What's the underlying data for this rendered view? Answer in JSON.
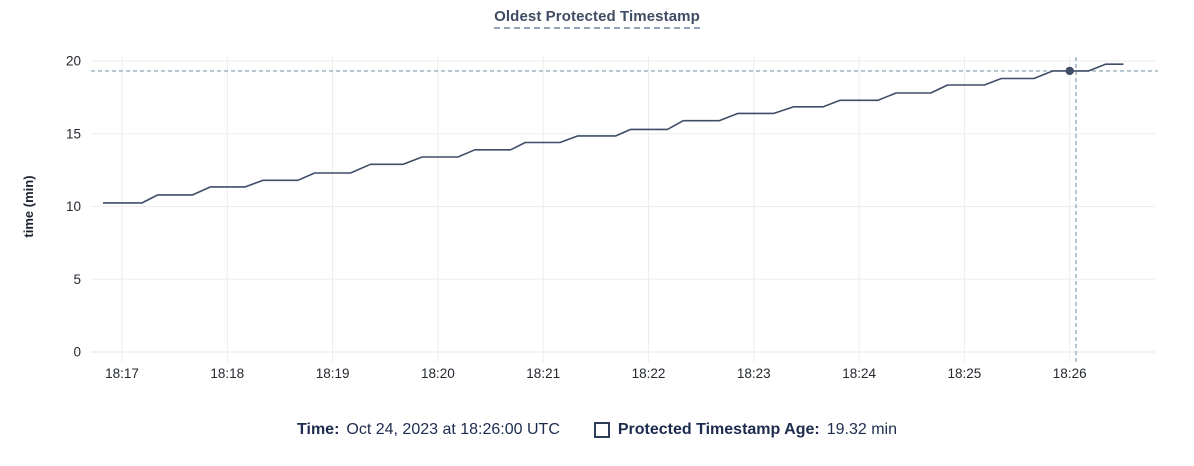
{
  "chart": {
    "title": "Oldest Protected Timestamp"
  },
  "tooltip": {
    "time_label": "Time:",
    "time_value": "Oct 24, 2023 at 18:26:00 UTC",
    "series_label": "Protected Timestamp Age:",
    "series_value": "19.32 min"
  },
  "colors": {
    "line": "#3f4e66",
    "grid": "#ededed",
    "zero_line": "#e4e4e4",
    "crosshair": "#98adbb",
    "tick_text": "#24292f",
    "axis_title_text": "#1b2330",
    "title_text": "#3f4c63",
    "title_underline": "#96a3b4",
    "legend_text": "#1d2c4e",
    "swatch_border": "#2c3c59",
    "background": "#ffffff"
  },
  "chart_data": {
    "type": "line",
    "title": "Oldest Protected Timestamp",
    "xlabel": "",
    "ylabel": "time (min)",
    "ylim": [
      0,
      20
    ],
    "y_ticks": [
      0,
      5,
      10,
      15,
      20
    ],
    "x_tick_labels": [
      "18:17",
      "18:18",
      "18:19",
      "18:20",
      "18:21",
      "18:22",
      "18:23",
      "18:24",
      "18:25",
      "18:26"
    ],
    "x_unit": "time of day UTC; series x values are minutes after 18:17",
    "grid": true,
    "legend_position": "bottom",
    "series": [
      {
        "name": "Protected Timestamp Age",
        "unit": "min",
        "points": [
          [
            -0.18,
            10.25
          ],
          [
            0.19,
            10.25
          ],
          [
            0.34,
            10.8
          ],
          [
            0.67,
            10.8
          ],
          [
            0.84,
            11.35
          ],
          [
            1.17,
            11.35
          ],
          [
            1.34,
            11.8
          ],
          [
            1.67,
            11.8
          ],
          [
            1.83,
            12.3
          ],
          [
            2.17,
            12.3
          ],
          [
            2.36,
            12.9
          ],
          [
            2.67,
            12.9
          ],
          [
            2.85,
            13.4
          ],
          [
            3.19,
            13.4
          ],
          [
            3.35,
            13.9
          ],
          [
            3.69,
            13.9
          ],
          [
            3.83,
            14.4
          ],
          [
            4.16,
            14.4
          ],
          [
            4.33,
            14.85
          ],
          [
            4.69,
            14.85
          ],
          [
            4.83,
            15.3
          ],
          [
            5.18,
            15.3
          ],
          [
            5.33,
            15.9
          ],
          [
            5.67,
            15.9
          ],
          [
            5.85,
            16.4
          ],
          [
            6.19,
            16.4
          ],
          [
            6.38,
            16.85
          ],
          [
            6.66,
            16.85
          ],
          [
            6.82,
            17.3
          ],
          [
            7.18,
            17.3
          ],
          [
            7.35,
            17.8
          ],
          [
            7.68,
            17.8
          ],
          [
            7.84,
            18.35
          ],
          [
            8.19,
            18.35
          ],
          [
            8.35,
            18.8
          ],
          [
            8.66,
            18.8
          ],
          [
            8.84,
            19.32
          ],
          [
            9.18,
            19.32
          ],
          [
            9.34,
            19.78
          ],
          [
            9.51,
            19.78
          ]
        ]
      }
    ],
    "hover": {
      "time": "18:26:00",
      "t": 9.0,
      "crosshair_t": 9.06,
      "value": 19.32
    }
  }
}
